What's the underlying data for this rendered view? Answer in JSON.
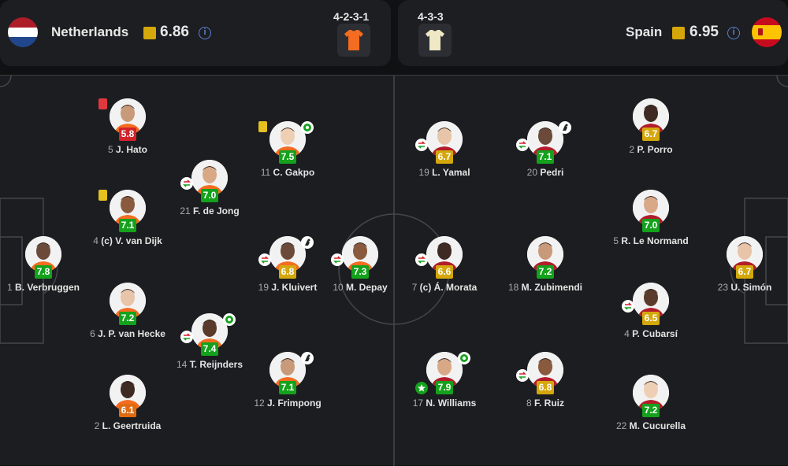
{
  "home": {
    "name": "Netherlands",
    "rating": "6.86",
    "formation": "4-2-3-1",
    "kit_color": "#f36c21",
    "info_icon": "info-icon"
  },
  "away": {
    "name": "Spain",
    "rating": "6.95",
    "formation": "4-3-3",
    "kit_color": "#efe8c4",
    "info_icon": "info-icon"
  },
  "colors": {
    "green": "#14a11c",
    "yellow": "#d4a70b",
    "orange": "#e06a10",
    "red": "#d2232a"
  },
  "players": [
    {
      "id": "verbruggen",
      "num": "1",
      "name": "B. Verbruggen",
      "rating": "7.8",
      "level": "green"
    },
    {
      "id": "hato",
      "num": "5",
      "name": "J. Hato",
      "rating": "5.8",
      "level": "red",
      "events": [
        "red-card"
      ]
    },
    {
      "id": "vandijk",
      "num": "4",
      "name": "(c) V. van Dijk",
      "rating": "7.1",
      "level": "green",
      "events": [
        "yellow-card"
      ]
    },
    {
      "id": "vanhecke",
      "num": "6",
      "name": "J. P. van Hecke",
      "rating": "7.2",
      "level": "green"
    },
    {
      "id": "geertruida",
      "num": "2",
      "name": "L. Geertruida",
      "rating": "6.1",
      "level": "orange"
    },
    {
      "id": "dejong",
      "num": "21",
      "name": "F. de Jong",
      "rating": "7.0",
      "level": "green",
      "events": [
        "substitution-icon"
      ]
    },
    {
      "id": "reijnders",
      "num": "14",
      "name": "T. Reijnders",
      "rating": "7.4",
      "level": "green",
      "events": [
        "substitution-icon",
        "goal-icon"
      ]
    },
    {
      "id": "gakpo",
      "num": "11",
      "name": "C. Gakpo",
      "rating": "7.5",
      "level": "green",
      "events": [
        "yellow-card",
        "goal-icon"
      ]
    },
    {
      "id": "kluivert",
      "num": "19",
      "name": "J. Kluivert",
      "rating": "6.8",
      "level": "yellow",
      "events": [
        "substitution-icon",
        "assist-icon"
      ]
    },
    {
      "id": "frimpong",
      "num": "12",
      "name": "J. Frimpong",
      "rating": "7.1",
      "level": "green",
      "events": [
        "assist-icon"
      ]
    },
    {
      "id": "depay",
      "num": "10",
      "name": "M. Depay",
      "rating": "7.3",
      "level": "green",
      "events": [
        "substitution-icon"
      ]
    },
    {
      "id": "simon",
      "num": "23",
      "name": "U. Simón",
      "rating": "6.7",
      "level": "yellow"
    },
    {
      "id": "porro",
      "num": "2",
      "name": "P. Porro",
      "rating": "6.7",
      "level": "yellow"
    },
    {
      "id": "lenormand",
      "num": "5",
      "name": "R. Le Normand",
      "rating": "7.0",
      "level": "green"
    },
    {
      "id": "cubarsi",
      "num": "4",
      "name": "P. Cubarsí",
      "rating": "6.5",
      "level": "yellow",
      "events": [
        "substitution-icon"
      ]
    },
    {
      "id": "cucurella",
      "num": "22",
      "name": "M. Cucurella",
      "rating": "7.2",
      "level": "green"
    },
    {
      "id": "pedri",
      "num": "20",
      "name": "Pedri",
      "rating": "7.1",
      "level": "green",
      "events": [
        "substitution-icon",
        "assist-icon"
      ]
    },
    {
      "id": "zubimendi",
      "num": "18",
      "name": "M. Zubimendi",
      "rating": "7.2",
      "level": "green"
    },
    {
      "id": "ruiz",
      "num": "8",
      "name": "F. Ruiz",
      "rating": "6.8",
      "level": "yellow",
      "events": [
        "substitution-icon"
      ]
    },
    {
      "id": "yamal",
      "num": "19",
      "name": "L. Yamal",
      "rating": "6.7",
      "level": "yellow",
      "events": [
        "substitution-icon"
      ]
    },
    {
      "id": "morata",
      "num": "7",
      "name": "(c) Á. Morata",
      "rating": "6.6",
      "level": "yellow",
      "events": [
        "substitution-icon"
      ]
    },
    {
      "id": "williams",
      "num": "17",
      "name": "N. Williams",
      "rating": "7.9",
      "level": "green",
      "events": [
        "goal-icon",
        "player-of-match-star"
      ]
    }
  ]
}
